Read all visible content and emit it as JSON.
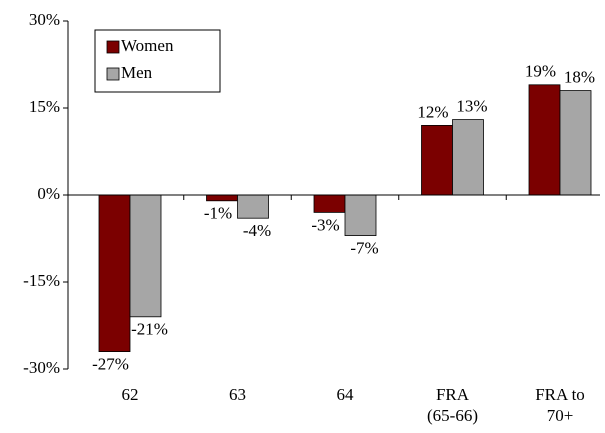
{
  "chart_data": {
    "type": "bar",
    "categories": [
      "62",
      "63",
      "64",
      "FRA (65-66)",
      "FRA to 70+"
    ],
    "series": [
      {
        "name": "Women",
        "color": "#7b0000",
        "values": [
          -27,
          -1,
          -3,
          12,
          19
        ],
        "value_labels": [
          "-27%",
          "-1%",
          "-3%",
          "12%",
          "19%"
        ]
      },
      {
        "name": "Men",
        "color": "#a6a6a6",
        "values": [
          -21,
          -4,
          -7,
          13,
          18
        ],
        "value_labels": [
          "-21%",
          "-4%",
          "-7%",
          "13%",
          "18%"
        ]
      }
    ],
    "ylim": [
      -30,
      30
    ],
    "yticks": [
      {
        "value": -30,
        "label": "-30%"
      },
      {
        "value": -15,
        "label": "-15%"
      },
      {
        "value": 0,
        "label": "0%"
      },
      {
        "value": 15,
        "label": "15%"
      },
      {
        "value": 30,
        "label": "30%"
      }
    ],
    "legend": "upper left"
  }
}
